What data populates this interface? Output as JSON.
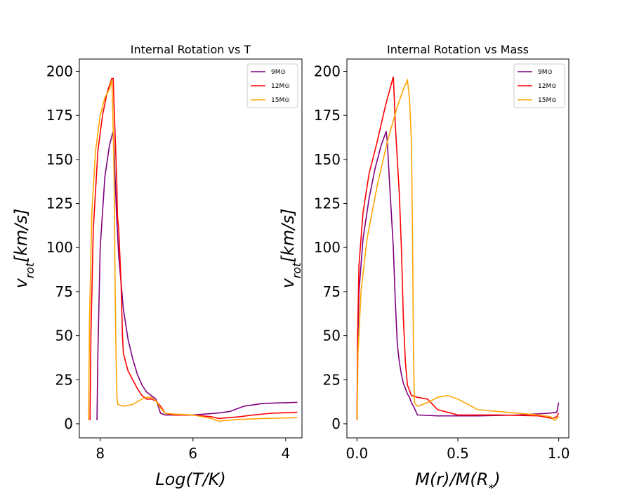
{
  "chart_data": [
    {
      "type": "line",
      "title": "Internal Rotation vs T",
      "xlabel": "Log(T/K)",
      "ylabel": "v_rot[km/s]",
      "xlim": [
        8.45,
        3.65
      ],
      "ylim": [
        -8,
        207
      ],
      "xticks": [
        "8",
        "6",
        "4"
      ],
      "xtick_values": [
        8,
        6,
        4
      ],
      "yticks": [
        "0",
        "25",
        "50",
        "75",
        "100",
        "125",
        "150",
        "175",
        "200"
      ],
      "ytick_values": [
        0,
        25,
        50,
        75,
        100,
        125,
        150,
        175,
        200
      ],
      "legend_placement": "upper-right",
      "series": [
        {
          "name": "9M⊙",
          "color": "#800080",
          "points": [
            [
              8.07,
              2
            ],
            [
              8.05,
              40
            ],
            [
              8.0,
              100
            ],
            [
              7.9,
              140
            ],
            [
              7.8,
              158
            ],
            [
              7.72,
              166
            ],
            [
              7.7,
              155
            ],
            [
              7.65,
              120
            ],
            [
              7.6,
              95
            ],
            [
              7.5,
              65
            ],
            [
              7.4,
              48
            ],
            [
              7.3,
              37
            ],
            [
              7.2,
              28
            ],
            [
              7.1,
              22
            ],
            [
              7.0,
              18
            ],
            [
              6.9,
              16
            ],
            [
              6.8,
              14
            ],
            [
              6.75,
              10
            ],
            [
              6.7,
              6
            ],
            [
              6.6,
              5
            ],
            [
              6.4,
              5
            ],
            [
              6.0,
              5
            ],
            [
              5.5,
              6
            ],
            [
              5.2,
              7
            ],
            [
              4.9,
              10
            ],
            [
              4.5,
              11.5
            ],
            [
              4.0,
              12
            ],
            [
              3.75,
              12.2
            ]
          ]
        },
        {
          "name": "12M⊙",
          "color": "#ff0000",
          "points": [
            [
              8.22,
              2
            ],
            [
              8.2,
              50
            ],
            [
              8.15,
              110
            ],
            [
              8.05,
              155
            ],
            [
              7.95,
              175
            ],
            [
              7.85,
              188
            ],
            [
              7.75,
              196
            ],
            [
              7.72,
              196
            ],
            [
              7.7,
              180
            ],
            [
              7.66,
              150
            ],
            [
              7.64,
              134
            ],
            [
              7.63,
              118
            ],
            [
              7.6,
              110
            ],
            [
              7.55,
              80
            ],
            [
              7.52,
              50
            ],
            [
              7.5,
              40
            ],
            [
              7.4,
              30
            ],
            [
              7.3,
              25
            ],
            [
              7.2,
              20
            ],
            [
              7.1,
              16
            ],
            [
              7.0,
              14
            ],
            [
              6.9,
              14
            ],
            [
              6.8,
              13
            ],
            [
              6.7,
              10
            ],
            [
              6.6,
              6
            ],
            [
              6.4,
              5
            ],
            [
              6.0,
              5
            ],
            [
              5.6,
              4
            ],
            [
              5.45,
              3
            ],
            [
              5.0,
              4
            ],
            [
              4.7,
              5
            ],
            [
              4.3,
              6
            ],
            [
              3.75,
              6.5
            ]
          ]
        },
        {
          "name": "15M⊙",
          "color": "#ffa500",
          "points": [
            [
              8.25,
              2
            ],
            [
              8.23,
              60
            ],
            [
              8.18,
              120
            ],
            [
              8.1,
              155
            ],
            [
              8.0,
              175
            ],
            [
              7.9,
              185
            ],
            [
              7.8,
              190
            ],
            [
              7.75,
              195
            ],
            [
              7.73,
              180
            ],
            [
              7.7,
              140
            ],
            [
              7.68,
              80
            ],
            [
              7.66,
              40
            ],
            [
              7.64,
              15
            ],
            [
              7.62,
              11
            ],
            [
              7.5,
              10
            ],
            [
              7.3,
              11
            ],
            [
              7.1,
              14
            ],
            [
              7.0,
              15
            ],
            [
              6.9,
              15
            ],
            [
              6.8,
              13
            ],
            [
              6.7,
              9
            ],
            [
              6.6,
              6
            ],
            [
              6.4,
              5.5
            ],
            [
              6.0,
              5
            ],
            [
              5.6,
              3
            ],
            [
              5.45,
              1.5
            ],
            [
              5.0,
              2.5
            ],
            [
              4.5,
              3
            ],
            [
              4.0,
              3.3
            ],
            [
              3.75,
              3.5
            ]
          ]
        }
      ]
    },
    {
      "type": "line",
      "title": "Internal Rotation vs Mass",
      "xlabel": "M(r)/M(R*)",
      "ylabel": "v_rot[km/s]",
      "xlim": [
        -0.05,
        1.05
      ],
      "ylim": [
        -8,
        207
      ],
      "xticks": [
        "0.0",
        "0.5",
        "1.0"
      ],
      "xtick_values": [
        0.0,
        0.5,
        1.0
      ],
      "yticks": [
        "0",
        "25",
        "50",
        "75",
        "100",
        "125",
        "150",
        "175",
        "200"
      ],
      "ytick_values": [
        0,
        25,
        50,
        75,
        100,
        125,
        150,
        175,
        200
      ],
      "legend_placement": "upper-right",
      "series": [
        {
          "name": "9M⊙",
          "color": "#800080",
          "points": [
            [
              0.0,
              2
            ],
            [
              0.003,
              40
            ],
            [
              0.01,
              75
            ],
            [
              0.03,
              105
            ],
            [
              0.06,
              128
            ],
            [
              0.09,
              145
            ],
            [
              0.12,
              158
            ],
            [
              0.145,
              166
            ],
            [
              0.15,
              160
            ],
            [
              0.16,
              140
            ],
            [
              0.17,
              120
            ],
            [
              0.18,
              100
            ],
            [
              0.19,
              70
            ],
            [
              0.2,
              45
            ],
            [
              0.21,
              35
            ],
            [
              0.22,
              28
            ],
            [
              0.23,
              23
            ],
            [
              0.24,
              20
            ],
            [
              0.25,
              17
            ],
            [
              0.26,
              15
            ],
            [
              0.27,
              12
            ],
            [
              0.28,
              10
            ],
            [
              0.3,
              5
            ],
            [
              0.4,
              4.5
            ],
            [
              0.6,
              4.5
            ],
            [
              0.8,
              5
            ],
            [
              0.95,
              6
            ],
            [
              0.99,
              6.5
            ],
            [
              1.0,
              12
            ]
          ]
        },
        {
          "name": "12M⊙",
          "color": "#ff0000",
          "points": [
            [
              0.0,
              2
            ],
            [
              0.003,
              50
            ],
            [
              0.01,
              90
            ],
            [
              0.03,
              120
            ],
            [
              0.06,
              142
            ],
            [
              0.1,
              160
            ],
            [
              0.14,
              180
            ],
            [
              0.18,
              197
            ],
            [
              0.185,
              185
            ],
            [
              0.19,
              170
            ],
            [
              0.2,
              150
            ],
            [
              0.21,
              130
            ],
            [
              0.22,
              100
            ],
            [
              0.23,
              60
            ],
            [
              0.24,
              35
            ],
            [
              0.25,
              22
            ],
            [
              0.27,
              16
            ],
            [
              0.3,
              15
            ],
            [
              0.35,
              14
            ],
            [
              0.4,
              8
            ],
            [
              0.5,
              5
            ],
            [
              0.7,
              5
            ],
            [
              0.9,
              4.5
            ],
            [
              0.97,
              3
            ],
            [
              0.99,
              4
            ],
            [
              1.0,
              6
            ]
          ]
        },
        {
          "name": "15M⊙",
          "color": "#ffa500",
          "points": [
            [
              0.0,
              2
            ],
            [
              0.005,
              40
            ],
            [
              0.02,
              75
            ],
            [
              0.05,
              105
            ],
            [
              0.1,
              135
            ],
            [
              0.15,
              160
            ],
            [
              0.2,
              180
            ],
            [
              0.23,
              190
            ],
            [
              0.25,
              195
            ],
            [
              0.26,
              185
            ],
            [
              0.27,
              160
            ],
            [
              0.275,
              110
            ],
            [
              0.28,
              40
            ],
            [
              0.285,
              12
            ],
            [
              0.3,
              10
            ],
            [
              0.35,
              12
            ],
            [
              0.4,
              15
            ],
            [
              0.45,
              16
            ],
            [
              0.5,
              14
            ],
            [
              0.6,
              8
            ],
            [
              0.7,
              7
            ],
            [
              0.8,
              6
            ],
            [
              0.9,
              5
            ],
            [
              0.96,
              4
            ],
            [
              0.98,
              2
            ],
            [
              1.0,
              4
            ]
          ]
        }
      ]
    }
  ]
}
